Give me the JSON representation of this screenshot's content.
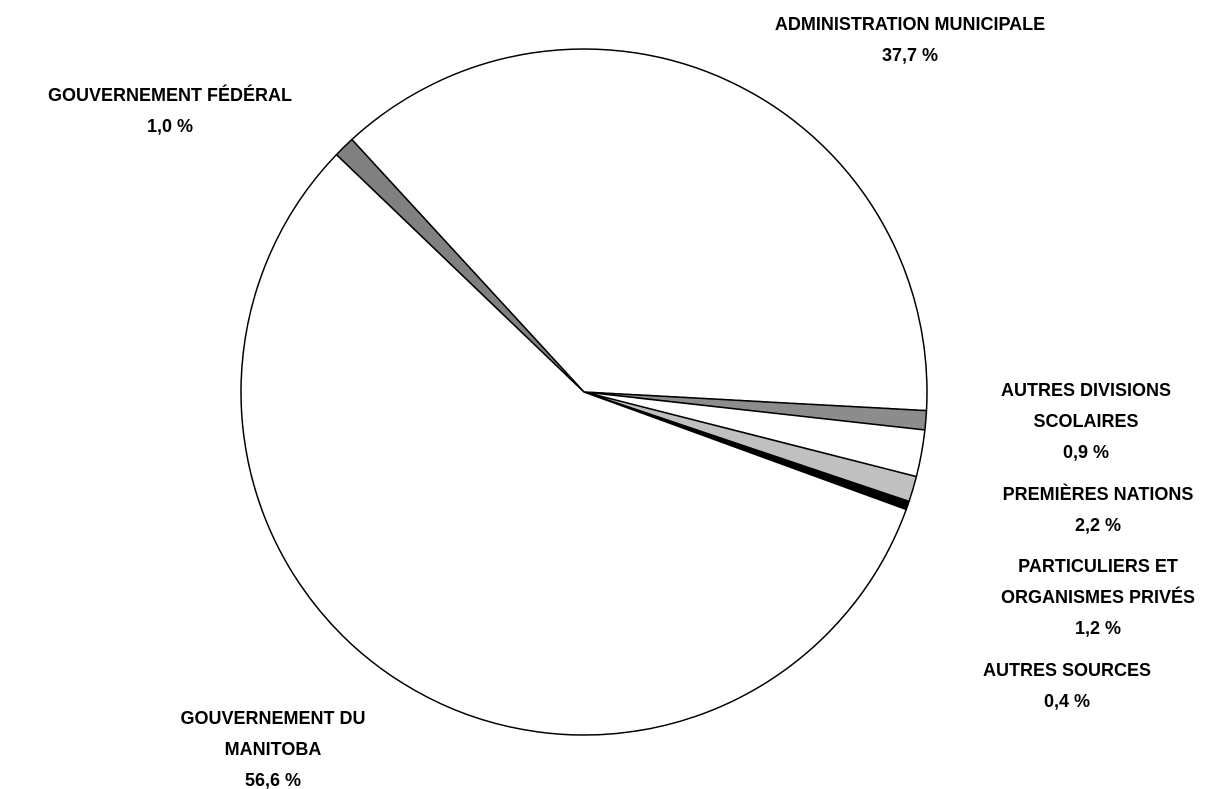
{
  "chart_data": {
    "type": "pie",
    "categories": [
      "ADMINISTRATION MUNICIPALE",
      "AUTRES DIVISIONS SCOLAIRES",
      "PREMIÈRES NATIONS",
      "PARTICULIERS ET ORGANISMES PRIVÉS",
      "AUTRES SOURCES",
      "GOUVERNEMENT DU MANITOBA",
      "GOUVERNEMENT FÉDÉRAL"
    ],
    "values": [
      37.7,
      0.9,
      2.2,
      1.2,
      0.4,
      56.6,
      1.0
    ],
    "value_labels": [
      "37,7 %",
      "0,9 %",
      "2,2 %",
      "1,2 %",
      "0,4 %",
      "56,6 %",
      "1,0 %"
    ],
    "colors": [
      "#ffffff",
      "#8c8c8c",
      "#ffffff",
      "#c0c0c0",
      "#000000",
      "#ffffff",
      "#808080"
    ]
  }
}
